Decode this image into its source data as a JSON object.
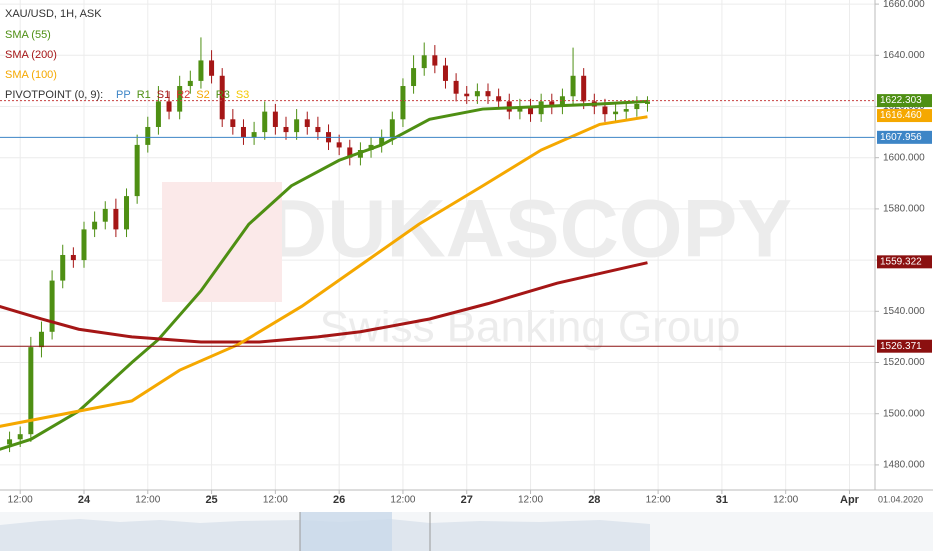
{
  "chart_data": {
    "type": "candlestick",
    "title": "XAU/USD, 1H, ASK",
    "watermark": [
      "DUKASCOPY",
      "Swiss Banking Group"
    ],
    "pivot_title": "PIVOTPOINT (0, 9):",
    "pivot_labels": [
      {
        "label": "PP",
        "color": "#3d85c6"
      },
      {
        "label": "R1",
        "color": "#4e8f13"
      },
      {
        "label": "S1",
        "color": "#a51616"
      },
      {
        "label": "R2",
        "color": "#d63030"
      },
      {
        "label": "S2",
        "color": "#f5a800"
      },
      {
        "label": "R3",
        "color": "#4e8f13"
      },
      {
        "label": "S3",
        "color": "#f5c800"
      }
    ],
    "x_axis_date_label": "01.04.2020",
    "up_color": "#4e8f13",
    "down_color": "#a51616",
    "grid": true,
    "xlim": [
      8.2,
      172.8
    ],
    "ylim": [
      1470.2,
      1661.6
    ],
    "xticks": [
      {
        "value": 12,
        "label": "12:00"
      },
      24,
      {
        "value": 36,
        "label": "12:00"
      },
      {
        "value": 48,
        "label": "25"
      },
      {
        "value": 60,
        "label": "12:00"
      },
      {
        "value": 72,
        "label": "26"
      },
      {
        "value": 84,
        "label": "12:00"
      },
      {
        "value": 96,
        "label": "27"
      },
      {
        "value": 108,
        "label": "12:00"
      },
      {
        "value": 120,
        "label": "28"
      },
      {
        "value": 132,
        "label": "12:00"
      },
      {
        "value": 144,
        "label": "31"
      },
      {
        "value": 156,
        "label": "12:00"
      },
      {
        "value": 168,
        "label": "Apr"
      }
    ],
    "yticks": [
      {
        "value": 1480,
        "label": "1480.000"
      },
      {
        "value": 1500,
        "label": "1500.000"
      },
      {
        "value": 1520,
        "label": "1520.000"
      },
      {
        "value": 1540,
        "label": "1540.000"
      },
      {
        "value": 1560,
        "label": "1560.000"
      },
      {
        "value": 1580,
        "label": "1580.000"
      },
      {
        "value": 1600,
        "label": "1600.000"
      },
      {
        "value": 1620,
        "label": "1620.000"
      },
      {
        "value": 1640,
        "label": "1640.000"
      },
      {
        "value": 1660,
        "label": "1660.000"
      }
    ],
    "x": [
      10,
      12,
      14,
      16,
      18,
      20,
      22,
      24,
      26,
      28,
      30,
      32,
      34,
      36,
      38,
      40,
      42,
      44,
      46,
      48,
      50,
      52,
      54,
      56,
      58,
      60,
      62,
      64,
      66,
      68,
      70,
      72,
      74,
      76,
      78,
      80,
      82,
      84,
      86,
      88,
      90,
      92,
      94,
      96,
      98,
      100,
      102,
      104,
      106,
      108,
      110,
      112,
      114,
      116,
      118,
      120,
      122,
      124,
      126,
      128,
      130
    ],
    "open": [
      1488,
      1490,
      1492,
      1526,
      1532,
      1552,
      1562,
      1560,
      1572,
      1575,
      1580,
      1572,
      1585,
      1605,
      1612,
      1622,
      1618,
      1628,
      1630,
      1638,
      1632,
      1615,
      1612,
      1608,
      1610,
      1618,
      1612,
      1610,
      1615,
      1612,
      1610,
      1606,
      1604,
      1600,
      1603,
      1605,
      1608,
      1615,
      1628,
      1635,
      1640,
      1636,
      1630,
      1625,
      1624,
      1626,
      1624,
      1622,
      1618,
      1620,
      1617,
      1622,
      1620,
      1624,
      1632,
      1622,
      1620,
      1617,
      1618,
      1619,
      1621
    ],
    "high": [
      1493,
      1495,
      1530,
      1536,
      1556,
      1566,
      1565,
      1575,
      1579,
      1583,
      1584,
      1588,
      1609,
      1616,
      1628,
      1626,
      1632,
      1634,
      1647,
      1642,
      1635,
      1619,
      1615,
      1614,
      1622,
      1621,
      1616,
      1619,
      1618,
      1616,
      1613,
      1609,
      1607,
      1606,
      1608,
      1611,
      1618,
      1631,
      1640,
      1645,
      1644,
      1639,
      1633,
      1628,
      1629,
      1629,
      1627,
      1625,
      1623,
      1623,
      1625,
      1625,
      1627,
      1643,
      1635,
      1625,
      1623,
      1621,
      1622,
      1624,
      1624
    ],
    "low": [
      1485,
      1487,
      1489,
      1522,
      1529,
      1549,
      1557,
      1557,
      1569,
      1572,
      1569,
      1569,
      1582,
      1602,
      1609,
      1615,
      1615,
      1625,
      1627,
      1629,
      1612,
      1609,
      1605,
      1605,
      1607,
      1609,
      1607,
      1607,
      1609,
      1607,
      1603,
      1601,
      1597,
      1597,
      1600,
      1602,
      1605,
      1612,
      1625,
      1632,
      1633,
      1627,
      1622,
      1621,
      1621,
      1621,
      1619,
      1615,
      1615,
      1614,
      1614,
      1617,
      1617,
      1621,
      1619,
      1617,
      1614,
      1614,
      1615,
      1616,
      1618
    ],
    "close": [
      1490,
      1492,
      1526,
      1532,
      1552,
      1562,
      1560,
      1572,
      1575,
      1580,
      1572,
      1585,
      1605,
      1612,
      1622,
      1618,
      1628,
      1630,
      1638,
      1632,
      1615,
      1612,
      1608,
      1610,
      1618,
      1612,
      1610,
      1615,
      1612,
      1610,
      1606,
      1604,
      1600,
      1603,
      1605,
      1608,
      1615,
      1628,
      1635,
      1640,
      1636,
      1630,
      1625,
      1624,
      1626,
      1624,
      1622,
      1618,
      1620,
      1617,
      1622,
      1620,
      1624,
      1632,
      1622,
      1620,
      1617,
      1618,
      1619,
      1621,
      1622
    ],
    "series": [
      {
        "name": "SMA (55)",
        "color": "#4e8f13",
        "x": [
          8,
          14,
          23,
          33,
          38,
          46,
          55,
          63,
          72,
          80,
          89,
          99,
          110,
          121,
          130
        ],
        "values": [
          1486,
          1490,
          1501,
          1520,
          1529,
          1548,
          1574,
          1589,
          1599,
          1605,
          1615,
          1619,
          1620,
          1621,
          1622
        ]
      },
      {
        "name": "SMA (200)",
        "color": "#a51616",
        "x": [
          8,
          16,
          23,
          33,
          46,
          57,
          68,
          76,
          89,
          100,
          113,
          130
        ],
        "values": [
          1542,
          1537,
          1533,
          1530,
          1528,
          1528,
          1530,
          1532,
          1537,
          1543,
          1551,
          1559
        ]
      },
      {
        "name": "SMA (100)",
        "color": "#f5a800",
        "x": [
          8,
          23,
          33,
          42,
          53,
          65,
          76,
          87,
          99,
          110,
          121,
          130
        ],
        "values": [
          1495,
          1501,
          1505,
          1517,
          1527,
          1542,
          1558,
          1574,
          1589,
          1603,
          1613,
          1616
        ]
      }
    ],
    "price_levels": [
      {
        "value": 1622.303,
        "label": "1622.303",
        "color": "#4e8f13",
        "line_color": "#c84040",
        "line": "dotted"
      },
      {
        "value": 1616.46,
        "label": "1616.460",
        "color": "#f5a800",
        "line_color": "#f5a800",
        "line": "none"
      },
      {
        "value": 1607.956,
        "label": "1607.956",
        "color": "#3d85c6",
        "line_color": "#3d85c6",
        "line": "solid"
      },
      {
        "value": 1559.322,
        "label": "1559.322",
        "color": "#8b1010",
        "line_color": "#8b1010",
        "line": "none"
      },
      {
        "value": 1526.371,
        "label": "1526.371",
        "color": "#8b1010",
        "line_color": "#8b1010",
        "line": "solid"
      }
    ]
  }
}
